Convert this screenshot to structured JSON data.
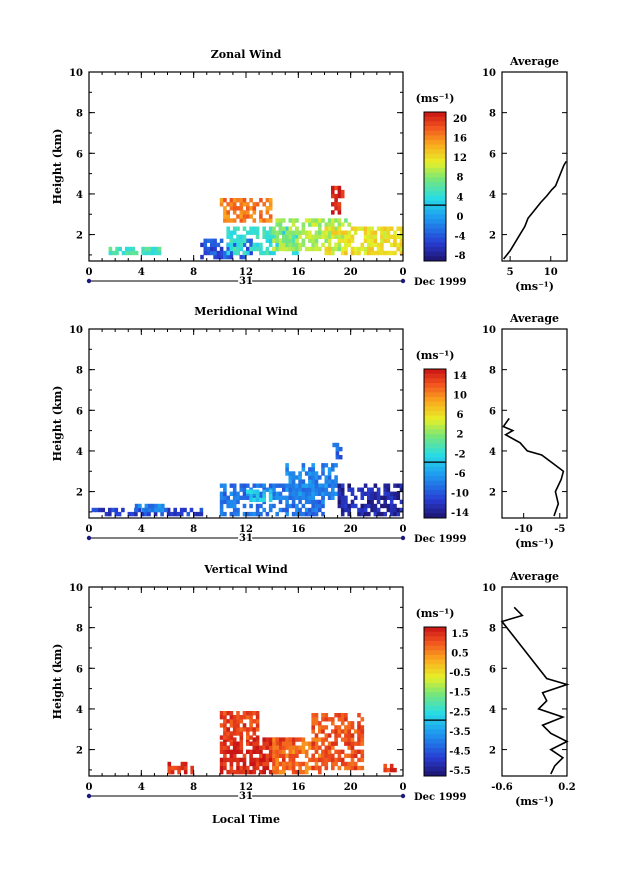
{
  "panels": [
    {
      "title": "Zonal Wind",
      "ylabel": "Height (km)",
      "unit": "(ms⁻¹)",
      "cbar_ticks": [
        "20",
        "16",
        "12",
        "8",
        "4",
        "0",
        "-4",
        "-8"
      ],
      "cbar_min": -10,
      "cbar_max": 22,
      "avg_title": "Average",
      "avg_xticks": [
        "5",
        "10"
      ],
      "avg_xlim": [
        4,
        12
      ],
      "avg_xlabel": "(ms⁻¹)",
      "date_left": "31",
      "date_right": "Dec 1999"
    },
    {
      "title": "Meridional Wind",
      "ylabel": "Height (km)",
      "unit": "(ms⁻¹)",
      "cbar_ticks": [
        "14",
        "10",
        "6",
        "2",
        "-2",
        "-6",
        "-10",
        "-14"
      ],
      "cbar_min": -16,
      "cbar_max": 16,
      "avg_title": "Average",
      "avg_xticks": [
        "-10",
        "-5"
      ],
      "avg_xlim": [
        -13,
        -4
      ],
      "avg_xlabel": "(ms⁻¹)",
      "date_left": "31",
      "date_right": "Dec 1999"
    },
    {
      "title": "Vertical Wind",
      "ylabel": "Height (km)",
      "unit": "(ms⁻¹)",
      "cbar_ticks": [
        "1.5",
        "0.5",
        "-0.5",
        "-1.5",
        "-2.5",
        "-3.5",
        "-4.5",
        "-5.5"
      ],
      "cbar_min": -6,
      "cbar_max": 2,
      "avg_title": "Average",
      "avg_xticks": [
        "-0.6",
        "0.2"
      ],
      "avg_xlim": [
        -0.6,
        0.2
      ],
      "avg_xlabel": "(ms⁻¹)",
      "date_left": "31",
      "date_right": "Dec 1999"
    }
  ],
  "xlabel_bottom": "Local Time",
  "chart_data": [
    {
      "type": "heatmap",
      "title": "Zonal Wind",
      "ylabel": "Height (km)",
      "x_ticks": [
        "0",
        "4",
        "8",
        "12",
        "16",
        "20",
        "0"
      ],
      "y_ticks": [
        "2",
        "4",
        "6",
        "8",
        "10"
      ],
      "xlim": [
        0,
        24
      ],
      "ylim": [
        0.7,
        10
      ],
      "colorbar": {
        "label": "(ms⁻¹)",
        "min": -10,
        "max": 22
      },
      "regions": [
        {
          "x": [
            1.5,
            5.5
          ],
          "y": [
            1.0,
            1.3
          ],
          "value": 5
        },
        {
          "x": [
            8.5,
            12.5
          ],
          "y": [
            0.8,
            1.6
          ],
          "value": -5
        },
        {
          "x": [
            10.5,
            16
          ],
          "y": [
            1.0,
            2.4
          ],
          "value": 4
        },
        {
          "x": [
            14,
            20
          ],
          "y": [
            1.2,
            2.8
          ],
          "value": 9
        },
        {
          "x": [
            18,
            24
          ],
          "y": [
            1.0,
            2.2
          ],
          "value": 12
        },
        {
          "x": [
            10,
            14
          ],
          "y": [
            2.6,
            3.8
          ],
          "value": 17
        },
        {
          "x": [
            18.5,
            19.5
          ],
          "y": [
            3.0,
            4.3
          ],
          "value": 21
        }
      ],
      "average_profile": {
        "x_unit": "(ms⁻¹)",
        "xlim": [
          4,
          12
        ],
        "height": [
          0.8,
          1.2,
          1.6,
          2.0,
          2.4,
          2.8,
          3.2,
          3.6,
          3.9,
          4.2,
          4.4,
          5.4,
          5.6
        ],
        "value": [
          4.2,
          5.0,
          5.6,
          6.2,
          6.8,
          7.2,
          8.0,
          8.8,
          9.5,
          10.1,
          10.6,
          11.6,
          11.9
        ]
      }
    },
    {
      "type": "heatmap",
      "title": "Meridional Wind",
      "ylabel": "Height (km)",
      "x_ticks": [
        "0",
        "4",
        "8",
        "12",
        "16",
        "20",
        "0"
      ],
      "y_ticks": [
        "2",
        "4",
        "6",
        "8",
        "10"
      ],
      "xlim": [
        0,
        24
      ],
      "ylim": [
        0.7,
        10
      ],
      "colorbar": {
        "label": "(ms⁻¹)",
        "min": -16,
        "max": 16
      },
      "regions": [
        {
          "x": [
            0.2,
            8.5
          ],
          "y": [
            0.8,
            1.1
          ],
          "value": -12
        },
        {
          "x": [
            3.5,
            6
          ],
          "y": [
            1.0,
            1.4
          ],
          "value": -8
        },
        {
          "x": [
            10,
            18
          ],
          "y": [
            0.8,
            2.4
          ],
          "value": -9
        },
        {
          "x": [
            12,
            14
          ],
          "y": [
            1.5,
            2.1
          ],
          "value": -4
        },
        {
          "x": [
            15,
            19
          ],
          "y": [
            1.6,
            3.4
          ],
          "value": -8
        },
        {
          "x": [
            19,
            24
          ],
          "y": [
            0.8,
            2.2
          ],
          "value": -14
        },
        {
          "x": [
            18.6,
            19.2
          ],
          "y": [
            3.6,
            4.4
          ],
          "value": -10
        }
      ],
      "average_profile": {
        "x_unit": "(ms⁻¹)",
        "xlim": [
          -13,
          -4
        ],
        "height": [
          0.8,
          1.4,
          2.0,
          2.6,
          3.0,
          3.4,
          3.8,
          4.0,
          4.4,
          4.8,
          5.0,
          5.2,
          5.6
        ],
        "value": [
          -5.8,
          -5.2,
          -5.6,
          -4.8,
          -4.5,
          -6.0,
          -7.5,
          -9.5,
          -10.5,
          -12.5,
          -11.5,
          -12.8,
          -12.0
        ]
      }
    },
    {
      "type": "heatmap",
      "title": "Vertical Wind",
      "ylabel": "Height (km)",
      "x_ticks": [
        "0",
        "4",
        "8",
        "12",
        "16",
        "20",
        "0"
      ],
      "y_ticks": [
        "2",
        "4",
        "6",
        "8",
        "10"
      ],
      "xlim": [
        0,
        24
      ],
      "ylim": [
        0.7,
        10
      ],
      "colorbar": {
        "label": "(ms⁻¹)",
        "min": -6,
        "max": 2
      },
      "regions": [
        {
          "x": [
            10,
            16
          ],
          "y": [
            0.8,
            2.5
          ],
          "value": 1.7
        },
        {
          "x": [
            10,
            13
          ],
          "y": [
            2.5,
            3.8
          ],
          "value": 1.4
        },
        {
          "x": [
            14,
            18
          ],
          "y": [
            0.8,
            2.5
          ],
          "value": 0.9
        },
        {
          "x": [
            17,
            21
          ],
          "y": [
            1.0,
            3.8
          ],
          "value": 1.2
        },
        {
          "x": [
            6,
            8
          ],
          "y": [
            0.8,
            1.3
          ],
          "value": 1.6
        },
        {
          "x": [
            22.5,
            23.5
          ],
          "y": [
            0.9,
            1.3
          ],
          "value": 1.5
        }
      ],
      "average_profile": {
        "x_unit": "(ms⁻¹)",
        "xlim": [
          -0.6,
          0.2
        ],
        "height": [
          0.8,
          1.2,
          1.6,
          2.0,
          2.4,
          2.8,
          3.2,
          3.6,
          4.0,
          4.4,
          4.8,
          5.2,
          5.5,
          8.3,
          8.6,
          9.0
        ],
        "value": [
          0.0,
          0.05,
          0.15,
          0.0,
          0.2,
          0.0,
          -0.1,
          0.15,
          -0.15,
          -0.05,
          -0.1,
          0.2,
          -0.05,
          -0.6,
          -0.35,
          -0.45
        ]
      }
    }
  ]
}
